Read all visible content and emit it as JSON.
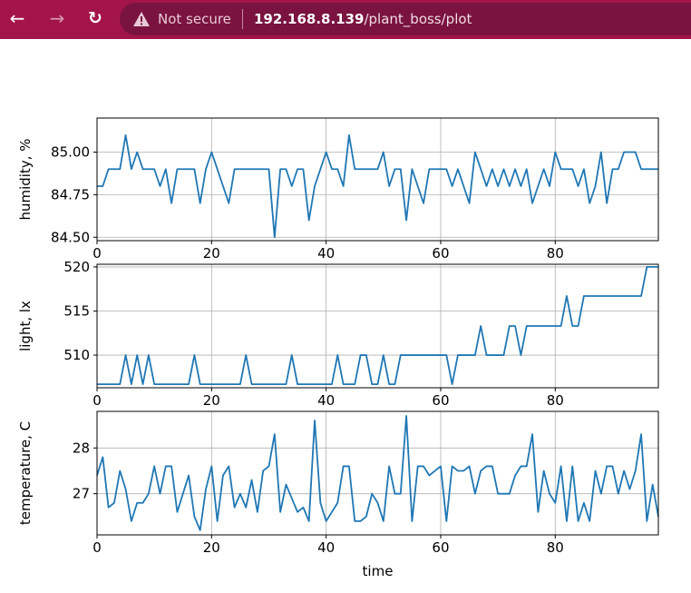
{
  "browser": {
    "back_icon": "arrow-left-icon",
    "forward_icon": "arrow-right-icon",
    "reload_icon": "reload-icon",
    "warning_icon": "warning-triangle-icon",
    "security_label": "Not secure",
    "url_host": "192.168.8.139",
    "url_path": "/plant_boss/plot",
    "bar_color": "#a3154a"
  },
  "chart_data": [
    {
      "type": "line",
      "ylabel": "humidity, %",
      "xlim": [
        0,
        98
      ],
      "ylim": [
        84.48,
        85.2
      ],
      "xticks": [
        0,
        20,
        40,
        60,
        80
      ],
      "yticks": [
        84.5,
        84.75,
        85.0
      ],
      "ytick_labels": [
        "84.50",
        "84.75",
        "85.00"
      ],
      "grid": true,
      "color": "#1f77b4",
      "values": [
        84.8,
        84.8,
        84.9,
        84.9,
        84.9,
        85.1,
        84.9,
        85.0,
        84.9,
        84.9,
        84.9,
        84.8,
        84.9,
        84.7,
        84.9,
        84.9,
        84.9,
        84.9,
        84.7,
        84.9,
        85.0,
        84.9,
        84.8,
        84.7,
        84.9,
        84.9,
        84.9,
        84.9,
        84.9,
        84.9,
        84.9,
        84.5,
        84.9,
        84.9,
        84.8,
        84.9,
        84.9,
        84.6,
        84.8,
        84.9,
        85.0,
        84.9,
        84.9,
        84.8,
        85.1,
        84.9,
        84.9,
        84.9,
        84.9,
        84.9,
        85.0,
        84.8,
        84.9,
        84.9,
        84.6,
        84.9,
        84.8,
        84.7,
        84.9,
        84.9,
        84.9,
        84.9,
        84.8,
        84.9,
        84.8,
        84.7,
        85.0,
        84.9,
        84.8,
        84.9,
        84.8,
        84.9,
        84.8,
        84.9,
        84.8,
        84.9,
        84.7,
        84.8,
        84.9,
        84.8,
        85.0,
        84.9,
        84.9,
        84.9,
        84.8,
        84.9,
        84.7,
        84.8,
        85.0,
        84.7,
        84.9,
        84.9,
        85.0,
        85.0,
        85.0,
        84.9,
        84.9,
        84.9,
        84.9
      ]
    },
    {
      "type": "line",
      "ylabel": "light, lx",
      "xlim": [
        0,
        98
      ],
      "ylim": [
        506.3,
        520.3
      ],
      "xticks": [
        0,
        20,
        40,
        60,
        80
      ],
      "yticks": [
        510,
        515,
        520
      ],
      "ytick_labels": [
        "510",
        "515",
        "520"
      ],
      "grid": true,
      "color": "#1f77b4",
      "values": [
        506.7,
        506.7,
        506.7,
        506.7,
        506.7,
        510,
        506.7,
        510,
        506.7,
        510,
        506.7,
        506.7,
        506.7,
        506.7,
        506.7,
        506.7,
        506.7,
        510,
        506.7,
        506.7,
        506.7,
        506.7,
        506.7,
        506.7,
        506.7,
        506.7,
        510,
        506.7,
        506.7,
        506.7,
        506.7,
        506.7,
        506.7,
        506.7,
        510,
        506.7,
        506.7,
        506.7,
        506.7,
        506.7,
        506.7,
        506.7,
        510,
        506.7,
        506.7,
        506.7,
        510,
        510,
        506.7,
        506.7,
        510,
        506.7,
        506.7,
        510,
        510,
        510,
        510,
        510,
        510,
        510,
        510,
        510,
        506.7,
        510,
        510,
        510,
        510,
        513.3,
        510,
        510,
        510,
        510,
        513.3,
        513.3,
        510,
        513.3,
        513.3,
        513.3,
        513.3,
        513.3,
        513.3,
        513.3,
        516.7,
        513.3,
        513.3,
        516.7,
        516.7,
        516.7,
        516.7,
        516.7,
        516.7,
        516.7,
        516.7,
        516.7,
        516.7,
        516.7,
        520,
        520,
        520
      ]
    },
    {
      "type": "line",
      "ylabel": "temperature, C",
      "xlabel": "time",
      "xlim": [
        0,
        98
      ],
      "ylim": [
        26.1,
        28.8
      ],
      "xticks": [
        0,
        20,
        40,
        60,
        80
      ],
      "yticks": [
        27,
        28
      ],
      "ytick_labels": [
        "27",
        "28"
      ],
      "grid": true,
      "color": "#1f77b4",
      "values": [
        27.4,
        27.8,
        26.7,
        26.8,
        27.5,
        27.1,
        26.4,
        26.8,
        26.8,
        27.0,
        27.6,
        27.0,
        27.6,
        27.6,
        26.6,
        27.0,
        27.4,
        26.5,
        26.2,
        27.1,
        27.6,
        26.4,
        27.4,
        27.6,
        26.7,
        27.0,
        26.7,
        27.3,
        26.6,
        27.5,
        27.6,
        28.3,
        26.6,
        27.2,
        26.9,
        26.6,
        26.7,
        26.4,
        28.6,
        26.8,
        26.4,
        26.6,
        26.8,
        27.6,
        27.6,
        26.4,
        26.4,
        26.5,
        27.0,
        26.8,
        26.4,
        27.6,
        27.0,
        27.0,
        28.7,
        26.4,
        27.6,
        27.6,
        27.4,
        27.5,
        27.6,
        26.4,
        27.6,
        27.5,
        27.5,
        27.6,
        27.0,
        27.5,
        27.6,
        27.6,
        27.0,
        27.0,
        27.0,
        27.4,
        27.6,
        27.6,
        28.3,
        26.6,
        27.5,
        27.0,
        26.8,
        27.6,
        26.4,
        27.6,
        26.4,
        26.8,
        26.4,
        27.5,
        27.0,
        27.6,
        27.6,
        27.0,
        27.5,
        27.1,
        27.5,
        28.3,
        26.4,
        27.2,
        26.5
      ]
    }
  ]
}
